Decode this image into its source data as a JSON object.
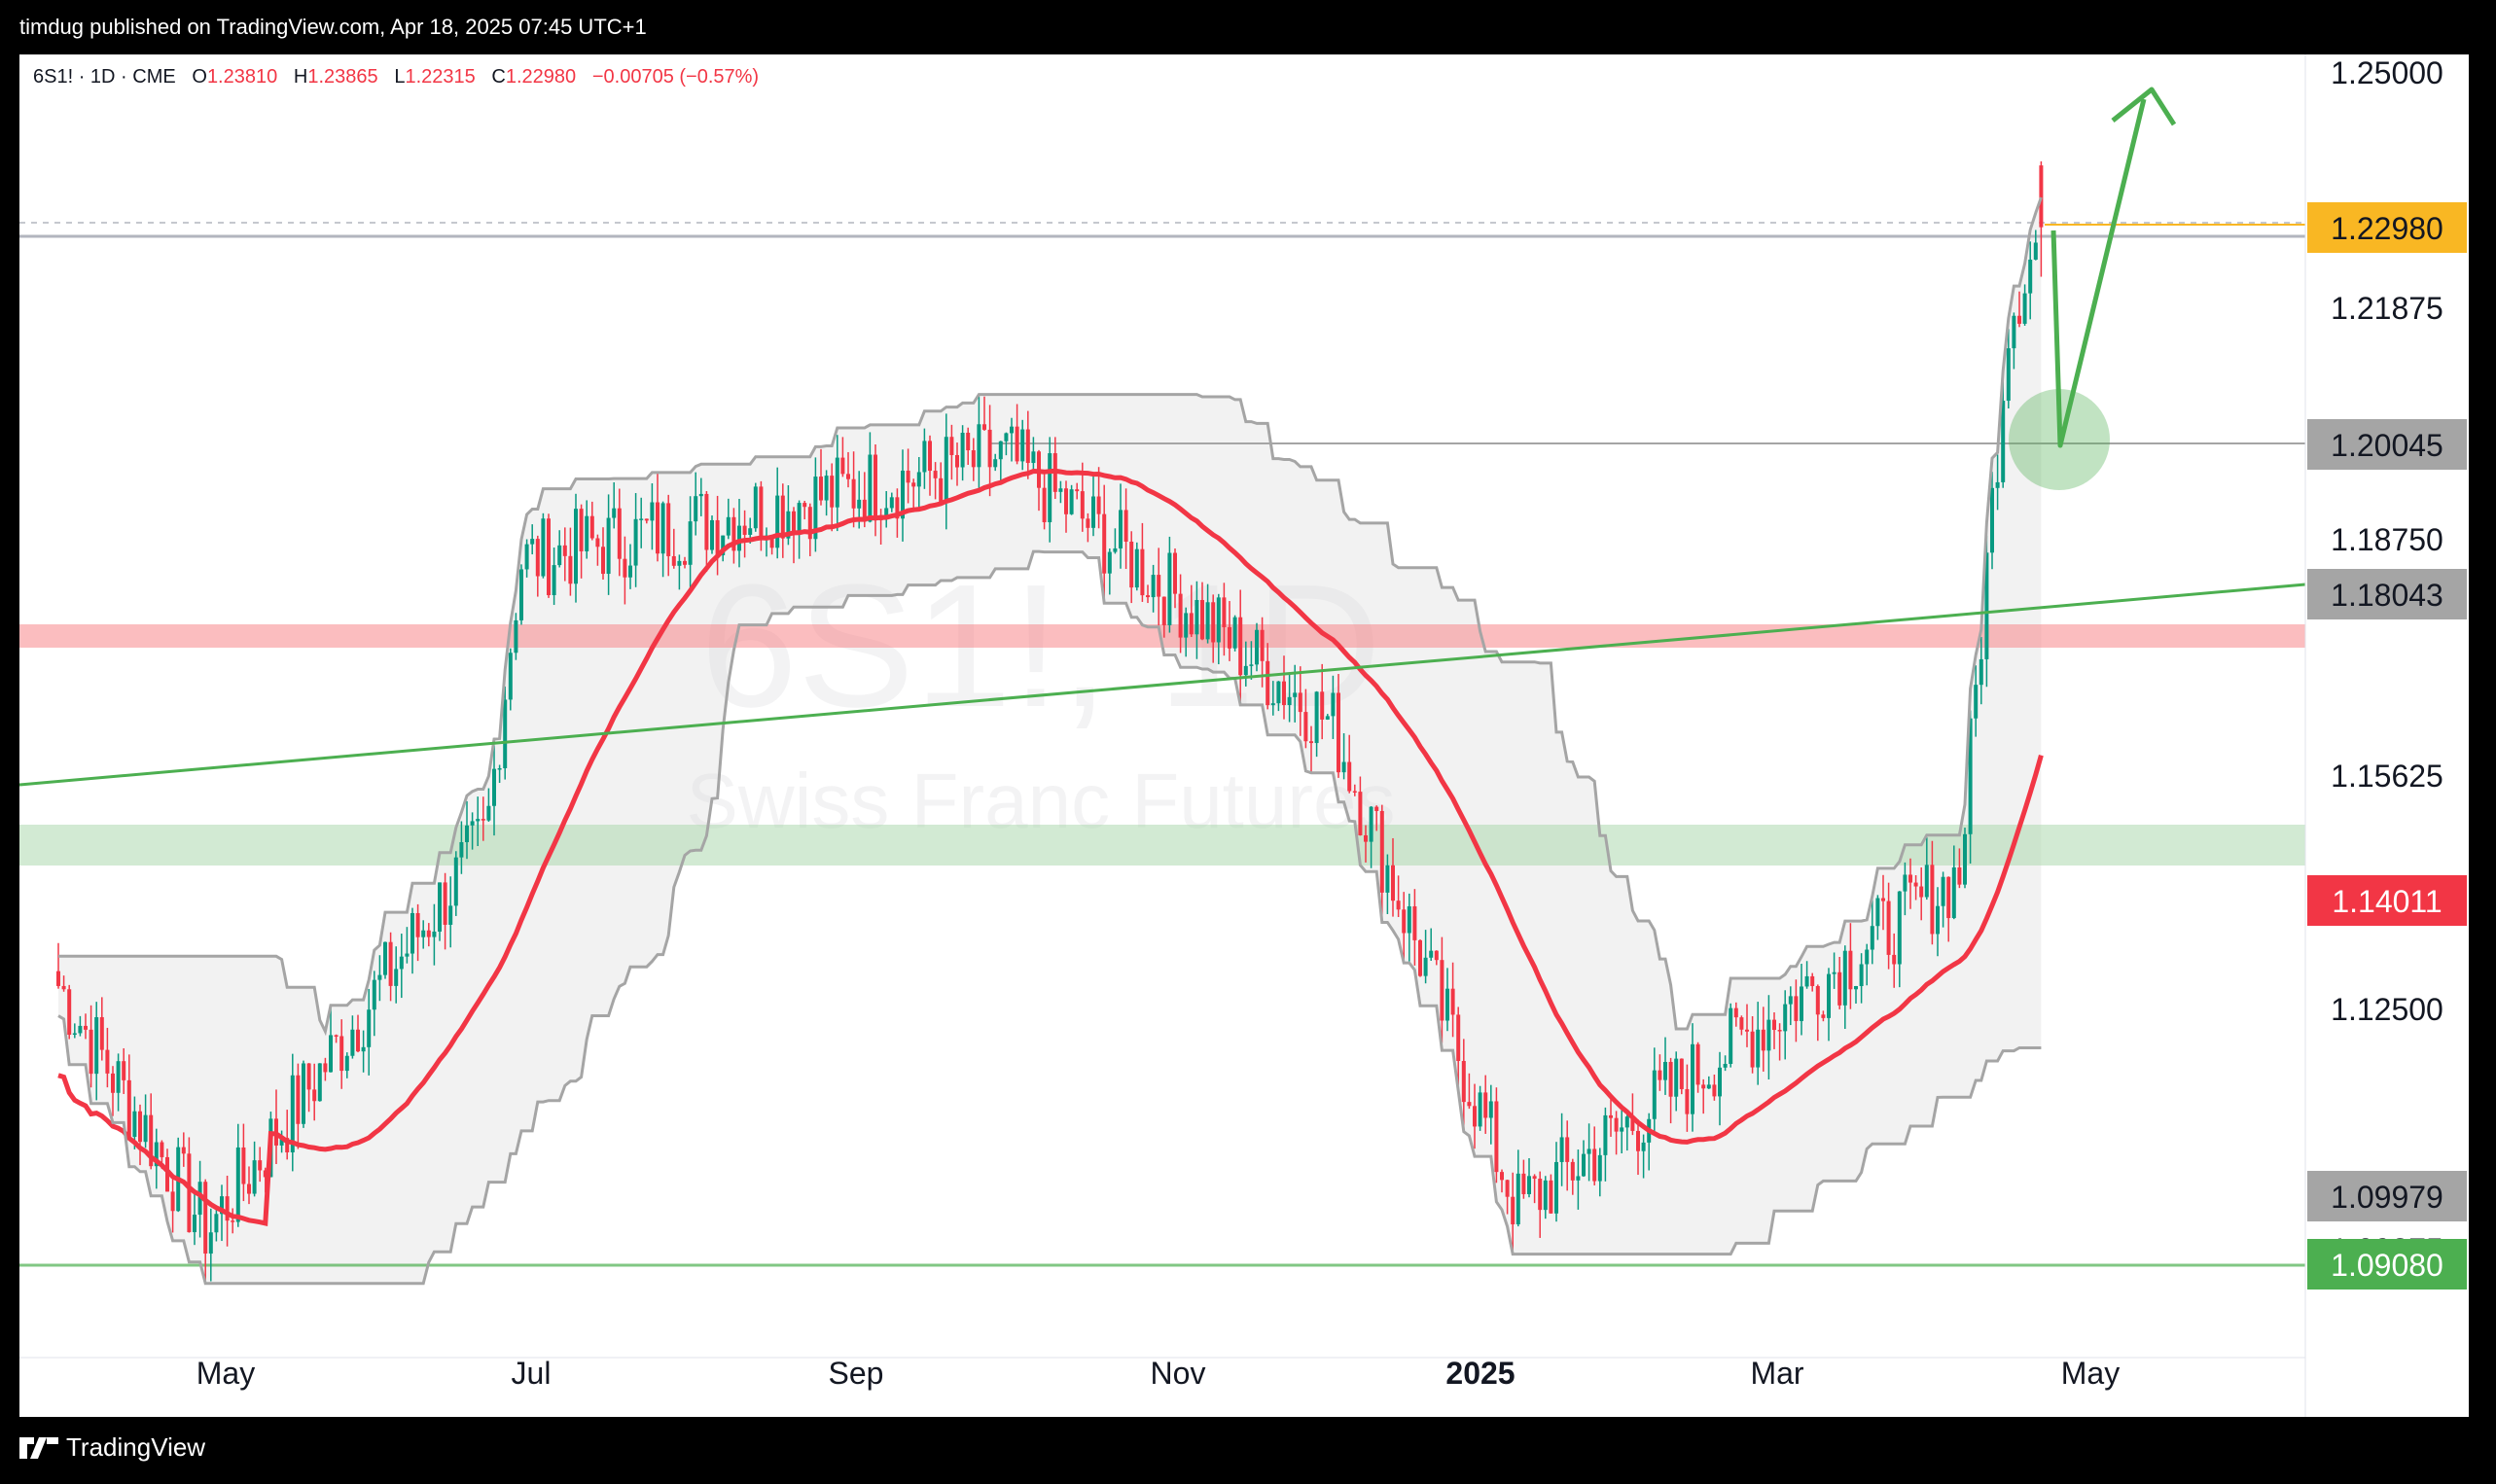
{
  "header": {
    "publish_text": "timdug published on TradingView.com, Apr 18, 2025 07:45 UTC+1"
  },
  "legend": {
    "symbol": "6S1! · 1D · CME",
    "open_label": "O",
    "open": "1.23810",
    "high_label": "H",
    "high": "1.23865",
    "low_label": "L",
    "low": "1.22315",
    "close_label": "C",
    "close": "1.22980",
    "change": "−0.00705 (−0.57%)"
  },
  "watermark": {
    "symbol": "6S1!, 1D",
    "description": "Swiss Franc Futures"
  },
  "footer": {
    "brand": "TradingView"
  },
  "colors": {
    "up": "#089981",
    "down": "#f23645",
    "ma": "#f23645",
    "band": "#a5a5a5",
    "trendline": "#4caf50",
    "arrow": "#4caf50",
    "resistance_zone": "#f77c80",
    "support_zone": "#a5d6a7",
    "last_price": "#f9b723"
  },
  "chart_data": {
    "type": "candlestick",
    "instrument": "6S1!",
    "timeframe": "1D",
    "x_axis": {
      "tick_labels": [
        "May",
        "Jul",
        "Sep",
        "Nov",
        "2025",
        "Mar",
        "May"
      ]
    },
    "y_axis": {
      "tick_labels": [
        "1.25000",
        "1.21875",
        "1.18750",
        "1.15625",
        "1.12500"
      ],
      "ylim": [
        1.078,
        1.253
      ]
    },
    "price_labels": [
      {
        "value": "1.22980",
        "kind": "last price",
        "color": "#f9b723"
      },
      {
        "value": "1.20045",
        "kind": "horizontal line",
        "color": "#a5a5a5"
      },
      {
        "value": "1.18043",
        "kind": "trend line",
        "color": "#a5a5a5"
      },
      {
        "value": "1.14011",
        "kind": "moving average",
        "color": "#f23645"
      },
      {
        "value": "1.09979",
        "kind": "lower band",
        "color": "#a5a5a5"
      },
      {
        "value": "1.09375",
        "kind": "axis tick (partially hidden)",
        "color": "#131722"
      },
      {
        "value": "1.09080",
        "kind": "horizontal line",
        "color": "#4caf50"
      }
    ],
    "key_points": [
      {
        "x": 40,
        "label": "start",
        "close": 1.128
      },
      {
        "x": 193,
        "label": "late Apr low",
        "close": 1.095
      },
      {
        "x": 480,
        "label": "mid Jul",
        "close": 1.148
      },
      {
        "x": 515,
        "label": "late Jul high",
        "close": 1.185
      },
      {
        "x": 1015,
        "label": "Sep top",
        "close": 1.199
      },
      {
        "x": 1350,
        "label": "Oct/Nov",
        "close": 1.163
      },
      {
        "x": 1540,
        "label": "Jan low",
        "close": 1.098
      },
      {
        "x": 1995,
        "label": "Mar",
        "close": 1.143
      },
      {
        "x": 2045,
        "label": "Apr surge",
        "close": 1.218
      },
      {
        "x": 2080,
        "label": "last",
        "close": 1.2298
      }
    ],
    "last": {
      "open": 1.2381,
      "high": 1.23865,
      "low": 1.22315,
      "close": 1.2298
    }
  }
}
